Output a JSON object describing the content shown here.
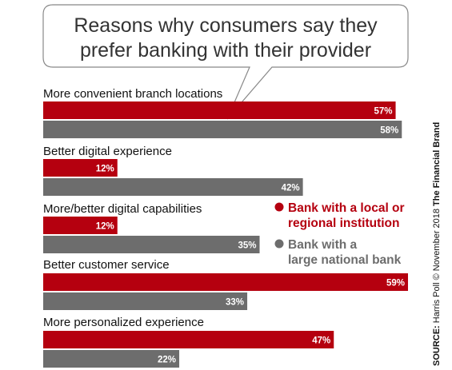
{
  "colors": {
    "local": "#b5000f",
    "national": "#6d6d6d",
    "bubble_border": "#888888",
    "title_text": "#333333"
  },
  "chart_data": {
    "type": "bar",
    "orientation": "horizontal",
    "title": "Reasons why consumers say they prefer banking with their provider",
    "title_lines": [
      "Reasons why consumers say they",
      "prefer banking with their provider"
    ],
    "categories": [
      "More convenient branch locations",
      "Better digital experience",
      "More/better digital capabilities",
      "Better customer service",
      "More personalized experience"
    ],
    "series": [
      {
        "name": "Bank with a local or regional institution",
        "legend_lines": [
          "Bank with a local or",
          "regional institution"
        ],
        "color": "#b5000f",
        "values": [
          57,
          12,
          12,
          59,
          47
        ]
      },
      {
        "name": "Bank with a large national bank",
        "legend_lines": [
          "Bank with a",
          "large national bank"
        ],
        "color": "#6d6d6d",
        "values": [
          58,
          42,
          35,
          33,
          22
        ]
      }
    ],
    "value_suffix": "%",
    "xlim": [
      0,
      59
    ],
    "grid": false,
    "legend_position": "right-middle",
    "source": {
      "label": "SOURCE:",
      "text": " Harris Poll © November 2018 ",
      "brand": "The Financial Brand"
    }
  }
}
